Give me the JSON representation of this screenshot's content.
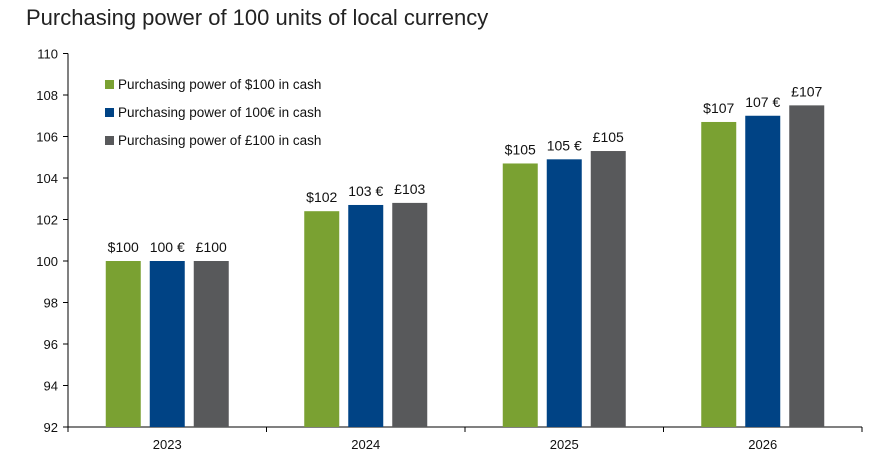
{
  "chart_data": {
    "type": "bar",
    "title": "Purchasing power of 100 units of local currency",
    "xlabel": "",
    "ylabel": "",
    "categories": [
      "2023",
      "2024",
      "2025",
      "2026"
    ],
    "ylim": [
      92,
      110
    ],
    "yticks": [
      "92",
      "94",
      "96",
      "98",
      "100",
      "102",
      "104",
      "106",
      "108",
      "110"
    ],
    "grid": false,
    "legend_position": "top-left",
    "series": [
      {
        "name": "Purchasing power of $100 in cash",
        "color": "#7aa132",
        "values": [
          100,
          102.4,
          104.7,
          106.7
        ],
        "labels": [
          "$100",
          "$102",
          "$105",
          "$107"
        ]
      },
      {
        "name": "Purchasing power  of 100€ in cash",
        "color": "#004385",
        "values": [
          100,
          102.7,
          104.9,
          107.0
        ],
        "labels": [
          "100 €",
          "103 €",
          "105 €",
          "107 €"
        ]
      },
      {
        "name": "Purchasing power of £100 in cash",
        "color": "#58595b",
        "values": [
          100,
          102.8,
          105.3,
          107.5
        ],
        "labels": [
          "£100",
          "£103",
          "£105",
          "£107"
        ]
      }
    ]
  }
}
